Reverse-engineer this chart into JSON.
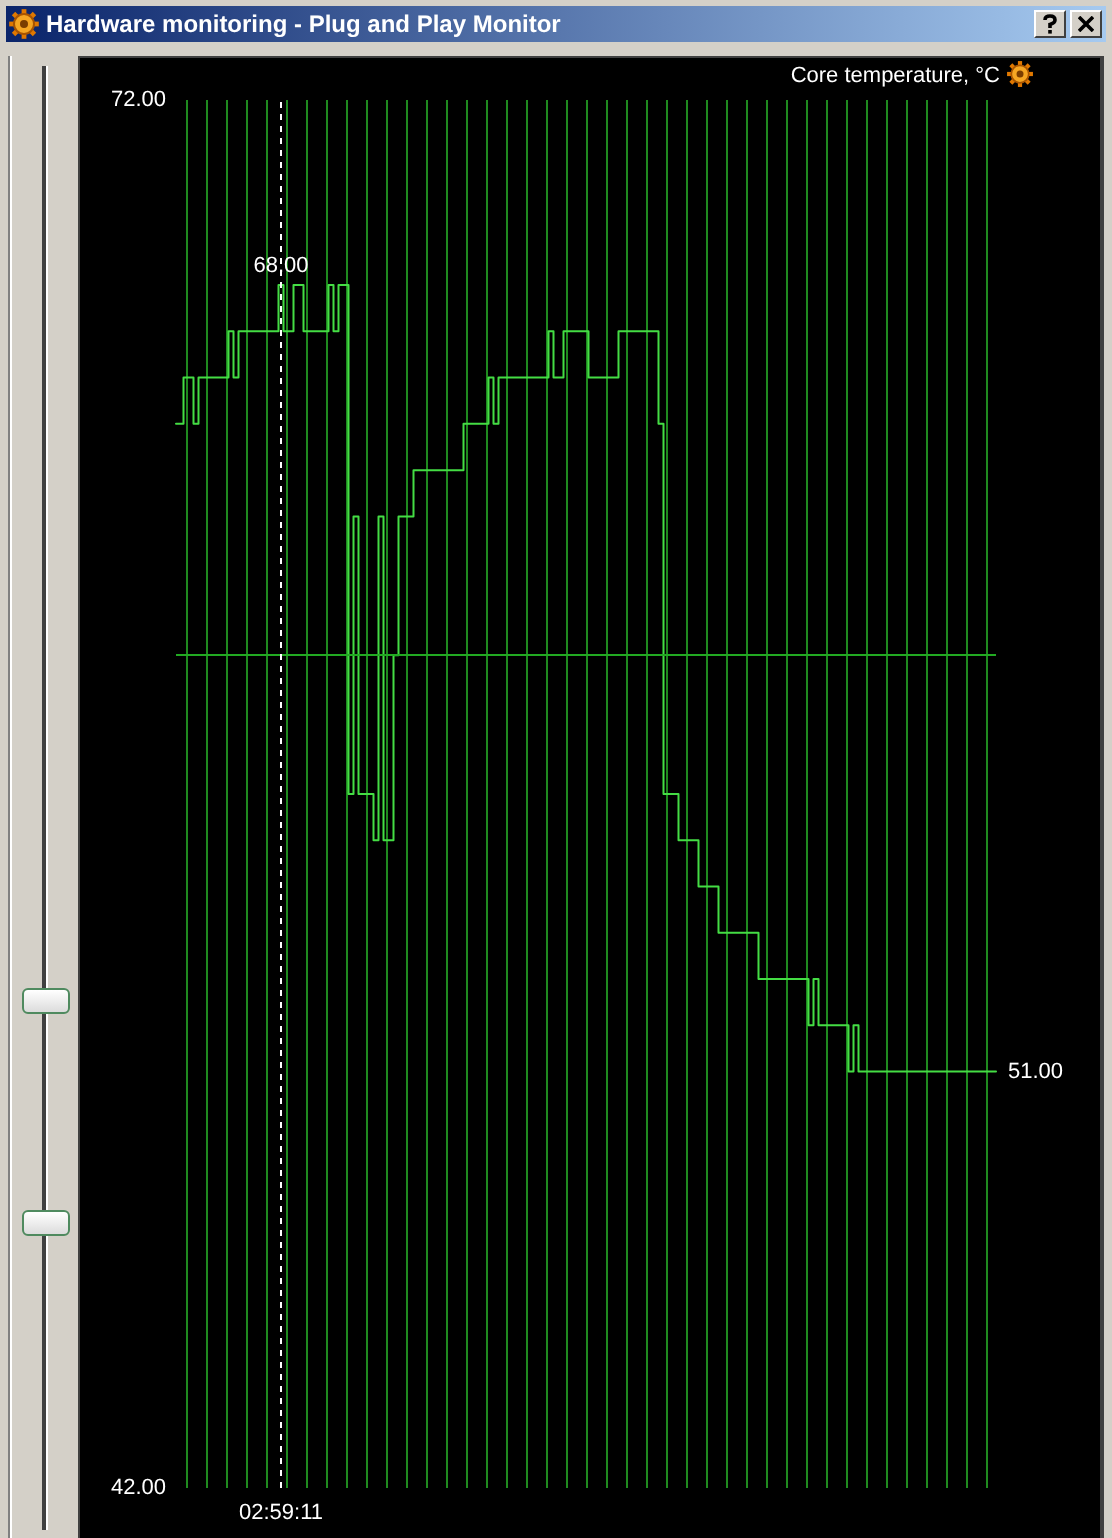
{
  "chart_data": {
    "type": "step",
    "title": "Hardware monitoring - Plug and Play Monitor",
    "ylabel": "Core temperature, °C",
    "categories": [
      null,
      null,
      null,
      null,
      null,
      null,
      null,
      null,
      null,
      null,
      null,
      null,
      null,
      null,
      null,
      null,
      null,
      null,
      null,
      null,
      null,
      "02:59:11",
      null,
      null,
      null,
      null,
      null,
      null,
      null,
      null,
      null,
      null,
      null,
      null,
      null,
      null,
      null,
      null,
      null,
      null,
      null,
      null,
      null,
      null,
      null,
      null,
      null,
      null,
      null,
      null,
      null,
      null,
      null,
      null,
      null,
      null,
      null,
      null,
      null,
      null,
      null,
      null,
      null,
      null,
      null,
      null,
      null,
      null,
      null,
      null,
      null,
      null,
      null,
      null,
      null,
      null,
      null,
      null,
      null,
      null,
      null,
      null,
      null,
      null,
      null,
      null,
      null,
      null,
      null,
      null,
      null,
      null,
      null,
      null,
      null,
      null,
      null,
      null,
      null,
      null,
      null,
      null,
      null,
      null,
      null,
      null,
      null,
      null,
      null,
      null,
      null,
      null,
      null,
      null,
      null,
      null,
      null,
      null,
      null,
      null,
      null,
      null,
      null,
      null,
      null,
      null,
      null,
      null,
      null,
      null,
      null,
      null,
      null,
      null,
      null,
      null,
      null,
      null,
      null,
      null,
      null,
      null,
      null,
      null,
      null,
      null,
      null,
      null,
      null,
      null,
      null,
      null,
      null,
      null,
      null,
      null,
      null,
      null,
      null,
      null,
      null,
      null,
      null,
      null,
      null
    ],
    "values": [
      65,
      65,
      66,
      66,
      65,
      66,
      66,
      66,
      66,
      66,
      66,
      67,
      66,
      67,
      67,
      67,
      67,
      67,
      67,
      67,
      67,
      68,
      67,
      67,
      68,
      68,
      67,
      67,
      67,
      67,
      67,
      68,
      67,
      68,
      68,
      57,
      63,
      57,
      57,
      57,
      56,
      63,
      56,
      56,
      60,
      63,
      63,
      63,
      64,
      64,
      64,
      64,
      64,
      64,
      64,
      64,
      64,
      64,
      65,
      65,
      65,
      65,
      65,
      66,
      65,
      66,
      66,
      66,
      66,
      66,
      66,
      66,
      66,
      66,
      66,
      67,
      66,
      66,
      67,
      67,
      67,
      67,
      67,
      66,
      66,
      66,
      66,
      66,
      66,
      67,
      67,
      67,
      67,
      67,
      67,
      67,
      67,
      65,
      57,
      57,
      57,
      56,
      56,
      56,
      56,
      55,
      55,
      55,
      55,
      54,
      54,
      54,
      54,
      54,
      54,
      54,
      54,
      53,
      53,
      53,
      53,
      53,
      53,
      53,
      53,
      53,
      53,
      52,
      53,
      52,
      52,
      52,
      52,
      52,
      52,
      51,
      52,
      51,
      51,
      51,
      51,
      51,
      51,
      51,
      51,
      51,
      51,
      51,
      51,
      51,
      51,
      51,
      51,
      51,
      51,
      51,
      51,
      51,
      51,
      51,
      51,
      51,
      51,
      51,
      51
    ],
    "value_labels": [
      null,
      null,
      null,
      null,
      null,
      null,
      null,
      null,
      null,
      null,
      null,
      null,
      null,
      null,
      null,
      null,
      null,
      null,
      null,
      null,
      null,
      "68.00",
      null,
      null,
      null,
      null,
      null,
      null,
      null,
      null,
      null,
      null,
      null,
      null,
      null,
      null,
      null,
      null,
      null,
      null,
      null,
      null,
      null,
      null,
      null,
      null,
      null,
      null,
      null,
      null,
      null,
      null,
      null,
      null,
      null,
      null,
      null,
      null,
      null,
      null,
      null,
      null,
      null,
      null,
      null,
      null,
      null,
      null,
      null,
      null,
      null,
      null,
      null,
      null,
      null,
      null,
      null,
      null,
      null,
      null,
      null,
      null,
      null,
      null,
      null,
      null,
      null,
      null,
      null,
      null,
      null,
      null,
      null,
      null,
      null,
      null,
      null,
      null,
      null,
      null,
      null,
      null,
      null,
      null,
      null,
      null,
      null,
      null,
      null,
      null,
      null,
      null,
      null,
      null,
      null,
      null,
      null,
      null,
      null,
      null,
      null,
      null,
      null,
      null,
      null,
      null,
      null,
      null,
      null,
      null,
      null,
      null,
      null,
      null,
      null,
      null,
      null,
      null,
      null,
      null,
      null,
      null,
      null,
      null,
      null,
      null,
      null,
      null,
      null,
      null,
      null,
      null,
      null,
      null,
      null,
      null,
      null,
      null,
      null,
      null,
      null,
      null,
      null,
      null,
      "51.00"
    ],
    "color": "#44dd44",
    "ylim": [
      42,
      72
    ],
    "yticks": [
      {
        "value": 42,
        "label": "42.00"
      },
      {
        "value": 72,
        "label": "72.00"
      }
    ],
    "grid": "x",
    "ref_lines": [
      {
        "axis": "y",
        "value": 60,
        "color": "#22aa22"
      },
      {
        "axis": "x",
        "value": "02:59:11",
        "color": "#ffffff",
        "line_style": "dashed"
      }
    ]
  }
}
